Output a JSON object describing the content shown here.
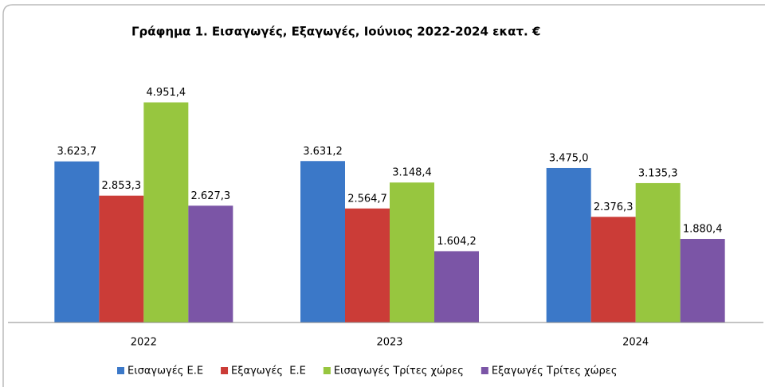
{
  "chart_data": {
    "type": "bar",
    "title": "Γράφημα 1. Εισαγωγές, Εξαγωγές, Ιούνιος 2022-2024 εκατ. €",
    "categories": [
      "2022",
      "2023",
      "2024"
    ],
    "ylim": [
      0,
      6000
    ],
    "series": [
      {
        "name": "Εισαγωγές Ε.Ε",
        "color": "#3b78c8",
        "values": [
          3623.7,
          3631.2,
          3475.0
        ],
        "value_labels": [
          "3.623,7",
          "3.631,2",
          "3.475,0"
        ]
      },
      {
        "name": "Εξαγωγές  Ε.Ε",
        "color": "#cb3c37",
        "values": [
          2853.3,
          2564.7,
          2376.3
        ],
        "value_labels": [
          "2.853,3",
          "2.564,7",
          "2.376,3"
        ]
      },
      {
        "name": "Εισαγωγές Τρίτες χώρες",
        "color": "#97c63f",
        "values": [
          4951.4,
          3148.4,
          3135.3
        ],
        "value_labels": [
          "4.951,4",
          "3.148,4",
          "3.135,3"
        ]
      },
      {
        "name": "Εξαγωγές Τρίτες χώρες",
        "color": "#7b55a6",
        "values": [
          2627.3,
          1604.2,
          1880.4
        ],
        "value_labels": [
          "2.627,3",
          "1.604,2",
          "1.880,4"
        ]
      }
    ]
  }
}
